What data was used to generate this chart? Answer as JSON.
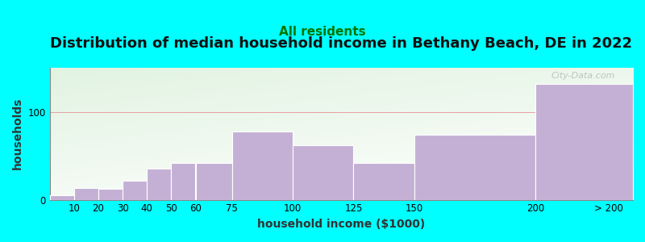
{
  "title": "Distribution of median household income in Bethany Beach, DE in 2022",
  "subtitle": "All residents",
  "xlabel": "household income ($1000)",
  "ylabel": "households",
  "bg_outer": "#00FFFF",
  "bar_color": "#c5b0d5",
  "bar_edge_color": "#ffffff",
  "grid_color": "#e8a0a0",
  "categories": [
    "10",
    "20",
    "30",
    "40",
    "50",
    "60",
    "75",
    "100",
    "125",
    "150",
    "200",
    "> 200"
  ],
  "x_left_edges": [
    0,
    10,
    20,
    30,
    40,
    50,
    60,
    75,
    100,
    125,
    150,
    200
  ],
  "x_right_edges": [
    10,
    20,
    30,
    40,
    50,
    60,
    75,
    100,
    125,
    150,
    200,
    240
  ],
  "x_tick_positions": [
    10,
    20,
    30,
    40,
    50,
    60,
    75,
    100,
    125,
    150,
    200
  ],
  "x_tick_labels": [
    "10",
    "20",
    "30",
    "40",
    "50",
    "60",
    "75",
    "100",
    "125",
    "150",
    "200"
  ],
  "x_last_tick": 230,
  "x_last_label": "> 200",
  "values": [
    5,
    13,
    12,
    22,
    35,
    42,
    42,
    78,
    62,
    42,
    74,
    132
  ],
  "xlim": [
    0,
    240
  ],
  "ylim": [
    0,
    150
  ],
  "yticks": [
    0,
    100
  ],
  "title_fontsize": 13,
  "subtitle_fontsize": 11,
  "axis_label_fontsize": 10,
  "tick_fontsize": 8.5,
  "watermark": "City-Data.com"
}
